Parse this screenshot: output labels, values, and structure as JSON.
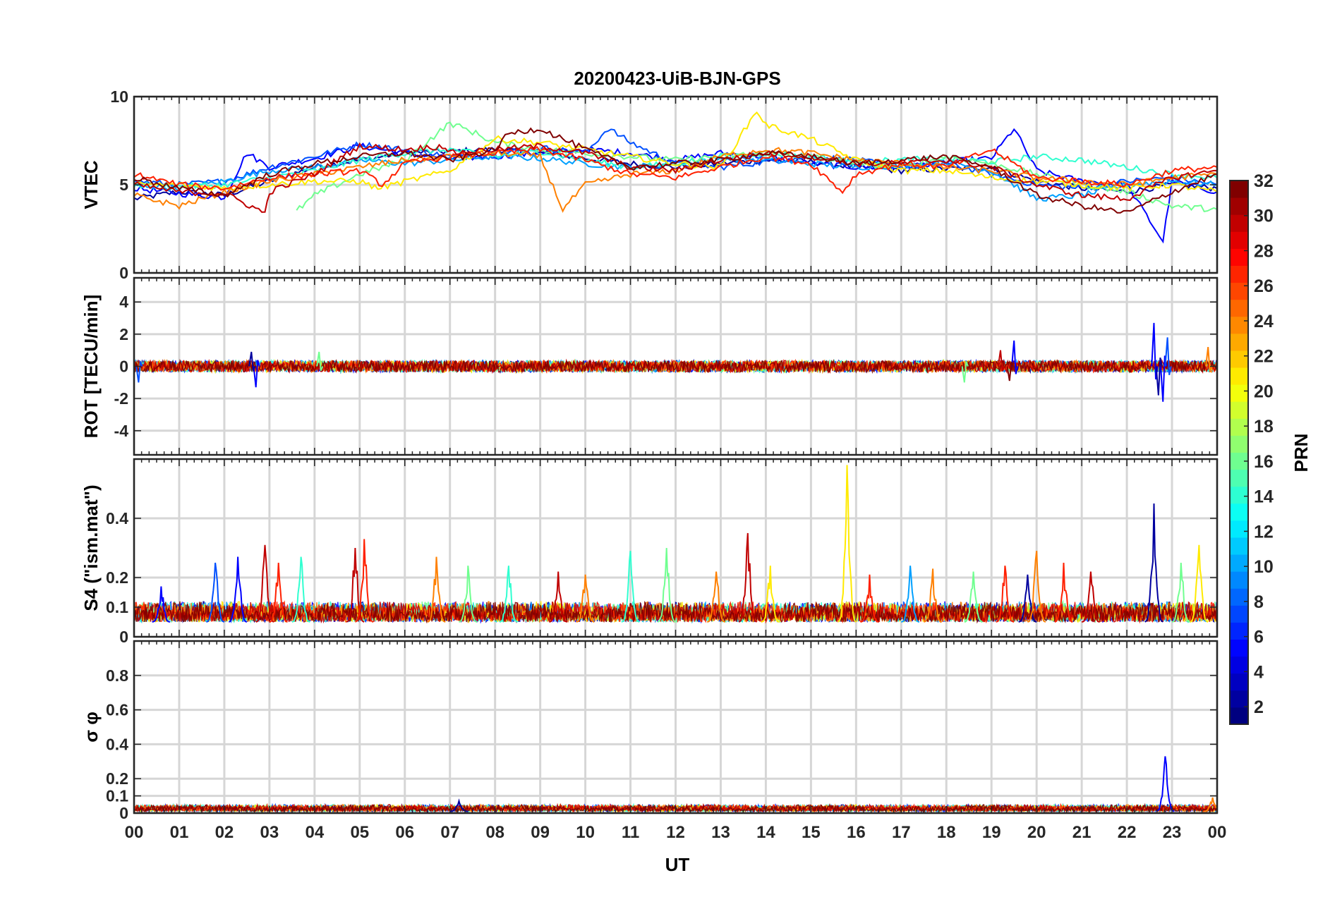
{
  "chart_data": {
    "type": "line",
    "title": "20200423-UiB-BJN-GPS",
    "xlabel": "UT",
    "x_ticks": [
      "00",
      "01",
      "02",
      "03",
      "04",
      "05",
      "06",
      "07",
      "08",
      "09",
      "10",
      "11",
      "12",
      "13",
      "14",
      "15",
      "16",
      "17",
      "18",
      "19",
      "20",
      "21",
      "22",
      "23",
      "00"
    ],
    "xlim": [
      0,
      24
    ],
    "grid": true,
    "panels": [
      {
        "id": "vtec",
        "ylabel": "VTEC",
        "ylim": [
          0,
          10
        ],
        "yticks": [
          0,
          5,
          10
        ],
        "ytick_labels": [
          "0",
          "5",
          "10"
        ],
        "series": [
          {
            "prn": 2,
            "color": "#00009f",
            "x": [
              0,
              1,
              2,
              3,
              4,
              5,
              6,
              7,
              8,
              9,
              10,
              11,
              12,
              13,
              14,
              15,
              16,
              17,
              18,
              19,
              20,
              21,
              22,
              23,
              24
            ],
            "y": [
              4.2,
              4.6,
              4.4,
              5.2,
              6.0,
              6.4,
              6.8,
              6.9,
              7.0,
              6.8,
              6.5,
              6.2,
              6.0,
              6.2,
              6.4,
              6.3,
              6.0,
              5.8,
              5.9,
              6.0,
              5.2,
              4.8,
              4.6,
              5.0,
              4.8
            ]
          },
          {
            "prn": 4,
            "color": "#0000ff",
            "x": [
              0,
              1,
              2,
              2.5,
              3,
              4,
              5,
              6,
              7,
              8,
              9,
              10,
              11,
              12,
              13,
              14,
              15,
              16,
              17,
              18,
              19,
              19.5,
              20,
              21,
              22,
              22.8,
              23,
              24
            ],
            "y": [
              4.8,
              4.5,
              4.3,
              6.8,
              6.0,
              6.5,
              7.2,
              6.8,
              6.5,
              6.6,
              6.8,
              7.0,
              6.8,
              6.4,
              6.8,
              6.6,
              6.2,
              6.0,
              6.0,
              6.3,
              6.5,
              8.2,
              5.8,
              5.2,
              5.0,
              1.8,
              5.2,
              4.6
            ]
          },
          {
            "prn": 7,
            "color": "#0050ff",
            "x": [
              0,
              1,
              2,
              3,
              4,
              5,
              6,
              7,
              8,
              9,
              10,
              10.5,
              11,
              12,
              13,
              14,
              15,
              16,
              17,
              18,
              19,
              20,
              21,
              22,
              23,
              24
            ],
            "y": [
              5.2,
              5.0,
              5.2,
              6.0,
              6.6,
              7.3,
              7.0,
              6.6,
              6.7,
              7.1,
              6.8,
              8.2,
              7.4,
              6.2,
              6.0,
              6.3,
              6.6,
              6.4,
              6.0,
              6.2,
              5.6,
              5.0,
              4.8,
              5.2,
              5.4,
              5.0
            ]
          },
          {
            "prn": 10,
            "color": "#00a0ff",
            "x": [
              0,
              1,
              2,
              3,
              4,
              5,
              6,
              7,
              8,
              9,
              10,
              11,
              12,
              13,
              14,
              15,
              16,
              17,
              18,
              19,
              20,
              21,
              22,
              23,
              24
            ],
            "y": [
              5.0,
              4.8,
              5.2,
              5.8,
              6.0,
              6.4,
              6.2,
              6.4,
              6.6,
              6.5,
              6.2,
              6.0,
              6.2,
              6.5,
              6.4,
              6.2,
              6.0,
              6.1,
              6.3,
              5.8,
              4.2,
              4.4,
              5.0,
              5.2,
              5.0
            ]
          },
          {
            "prn": 14,
            "color": "#30ffd0",
            "x": [
              0,
              1,
              2,
              3,
              4,
              5,
              6,
              7,
              8,
              9,
              10,
              11,
              12,
              13,
              14,
              15,
              16,
              17,
              18,
              19,
              20,
              21,
              22,
              23,
              24
            ],
            "y": [
              5.0,
              4.9,
              5.0,
              5.4,
              5.8,
              6.4,
              6.8,
              7.0,
              6.6,
              6.9,
              6.4,
              6.0,
              6.2,
              6.6,
              6.8,
              6.6,
              6.3,
              6.4,
              6.5,
              6.3,
              6.6,
              6.4,
              6.0,
              5.6,
              5.4
            ]
          },
          {
            "prn": 16,
            "color": "#70ff90",
            "x": [
              3.6,
              4,
              5,
              6,
              7,
              7.5,
              8,
              9,
              10,
              11,
              12,
              13,
              14,
              15,
              16,
              17,
              18,
              19,
              20,
              21,
              22,
              23,
              24
            ],
            "y": [
              3.5,
              4.4,
              5.6,
              6.4,
              8.5,
              8.0,
              7.4,
              7.0,
              6.8,
              6.6,
              6.4,
              6.6,
              6.8,
              6.6,
              6.2,
              6.0,
              6.6,
              6.2,
              5.6,
              5.0,
              4.6,
              3.8,
              3.6
            ]
          },
          {
            "prn": 20,
            "color": "#ffea00",
            "x": [
              0,
              1,
              2,
              3,
              4,
              5,
              5.4,
              7,
              8,
              9,
              10,
              11,
              12,
              13,
              13.8,
              14,
              15,
              16,
              17,
              18,
              19,
              20,
              21,
              22,
              23,
              24
            ],
            "y": [
              5.0,
              5.0,
              4.8,
              5.0,
              5.2,
              5.2,
              4.8,
              5.8,
              7.6,
              7.4,
              7.0,
              6.6,
              6.2,
              6.0,
              9.2,
              8.4,
              7.6,
              6.4,
              5.8,
              5.8,
              5.4,
              5.2,
              5.0,
              4.8,
              5.0,
              4.6
            ]
          },
          {
            "prn": 24,
            "color": "#ff8000",
            "x": [
              0,
              1,
              2,
              3,
              4,
              5,
              6,
              7,
              8,
              9,
              9.5,
              10,
              11,
              12,
              13,
              14,
              15,
              16,
              17,
              18,
              19,
              20,
              21,
              22,
              23,
              24
            ],
            "y": [
              4.4,
              3.8,
              4.6,
              5.2,
              5.6,
              6.0,
              6.4,
              6.6,
              6.8,
              6.6,
              3.6,
              5.0,
              5.6,
              5.8,
              6.6,
              7.0,
              6.8,
              6.4,
              6.2,
              6.0,
              5.8,
              5.4,
              5.2,
              5.0,
              5.4,
              5.6
            ]
          },
          {
            "prn": 27,
            "color": "#ff2000",
            "x": [
              0,
              1,
              2,
              3,
              4,
              5,
              5.5,
              6,
              7,
              8,
              9,
              10,
              11,
              12,
              13,
              14,
              15,
              15.7,
              16,
              17,
              18,
              19,
              20,
              21,
              22,
              23,
              24
            ],
            "y": [
              5.6,
              5.0,
              4.8,
              5.4,
              5.6,
              5.8,
              5.0,
              6.2,
              6.6,
              6.8,
              7.0,
              6.4,
              5.6,
              5.4,
              6.0,
              6.6,
              6.2,
              4.6,
              5.6,
              6.2,
              6.0,
              7.0,
              5.4,
              5.2,
              5.0,
              5.8,
              6.0
            ]
          },
          {
            "prn": 30,
            "color": "#c00000",
            "x": [
              0,
              1,
              2,
              2.9,
              3,
              4,
              5,
              6,
              6.9,
              7,
              8,
              9,
              10,
              11,
              12,
              13,
              14,
              15,
              16,
              17,
              18,
              19,
              20,
              21,
              22,
              23,
              24
            ],
            "y": [
              5.0,
              4.6,
              4.5,
              3.4,
              4.6,
              5.6,
              7.2,
              7.0,
              7.2,
              6.8,
              7.0,
              7.2,
              6.8,
              6.0,
              5.8,
              6.4,
              6.8,
              6.6,
              6.2,
              6.2,
              6.4,
              6.0,
              5.0,
              4.4,
              4.2,
              5.4,
              5.8
            ]
          },
          {
            "prn": 32,
            "color": "#800000",
            "x": [
              0,
              1,
              2,
              3,
              4,
              5,
              6,
              7,
              8,
              8.3,
              9,
              10,
              11,
              12,
              13,
              14,
              15,
              16,
              17,
              18,
              19,
              20,
              21,
              22,
              23,
              24
            ],
            "y": [
              5.4,
              4.8,
              4.4,
              5.6,
              6.2,
              6.6,
              6.8,
              6.4,
              7.0,
              7.9,
              8.2,
              7.0,
              6.0,
              6.2,
              6.4,
              6.8,
              6.6,
              6.2,
              6.4,
              6.6,
              6.0,
              4.4,
              3.8,
              3.4,
              4.6,
              5.6
            ]
          }
        ]
      },
      {
        "id": "rot",
        "ylabel": "ROT [TECU/min]",
        "ylim": [
          -5.5,
          5.5
        ],
        "yticks": [
          -4,
          -2,
          0,
          2,
          4
        ],
        "ytick_labels": [
          "-4",
          "-2",
          "0",
          "2",
          "4"
        ],
        "noise_band": [
          -0.3,
          0.3
        ],
        "spikes": [
          {
            "x": 0.1,
            "y": -1.0,
            "color": "#0050ff"
          },
          {
            "x": 2.7,
            "y": -1.3,
            "color": "#0000ff"
          },
          {
            "x": 2.6,
            "y": 0.9,
            "color": "#00009f"
          },
          {
            "x": 4.1,
            "y": 0.9,
            "color": "#70ff90"
          },
          {
            "x": 18.4,
            "y": -1.0,
            "color": "#70ff90"
          },
          {
            "x": 19.2,
            "y": 1.0,
            "color": "#c00000"
          },
          {
            "x": 19.5,
            "y": 1.6,
            "color": "#0000ff"
          },
          {
            "x": 19.4,
            "y": -0.9,
            "color": "#800000"
          },
          {
            "x": 22.6,
            "y": 2.7,
            "color": "#0000ff"
          },
          {
            "x": 22.8,
            "y": -2.2,
            "color": "#0000ff"
          },
          {
            "x": 22.9,
            "y": 1.8,
            "color": "#0050ff"
          },
          {
            "x": 22.7,
            "y": -1.8,
            "color": "#00009f"
          },
          {
            "x": 23.8,
            "y": 1.2,
            "color": "#ff8000"
          }
        ]
      },
      {
        "id": "s4",
        "ylabel": "S4 (\"ism.mat\")",
        "ylim": [
          0,
          0.6
        ],
        "yticks": [
          0,
          0.1,
          0.2,
          0.4
        ],
        "ytick_labels": [
          "0",
          "0.1",
          "0.2",
          "0.4"
        ],
        "baseline_range": [
          0.05,
          0.12
        ],
        "peaks": [
          {
            "x": 0.6,
            "y": 0.17,
            "color": "#0000ff"
          },
          {
            "x": 1.8,
            "y": 0.25,
            "color": "#0050ff"
          },
          {
            "x": 2.3,
            "y": 0.27,
            "color": "#0000ff"
          },
          {
            "x": 2.9,
            "y": 0.31,
            "color": "#c00000"
          },
          {
            "x": 3.2,
            "y": 0.25,
            "color": "#ff2000"
          },
          {
            "x": 3.7,
            "y": 0.27,
            "color": "#30ffd0"
          },
          {
            "x": 4.9,
            "y": 0.3,
            "color": "#c00000"
          },
          {
            "x": 5.1,
            "y": 0.33,
            "color": "#ff2000"
          },
          {
            "x": 6.7,
            "y": 0.27,
            "color": "#ff8000"
          },
          {
            "x": 7.4,
            "y": 0.24,
            "color": "#70ff90"
          },
          {
            "x": 8.3,
            "y": 0.24,
            "color": "#30ffd0"
          },
          {
            "x": 9.4,
            "y": 0.22,
            "color": "#c00000"
          },
          {
            "x": 10.0,
            "y": 0.21,
            "color": "#ff8000"
          },
          {
            "x": 11.0,
            "y": 0.29,
            "color": "#30ffd0"
          },
          {
            "x": 11.8,
            "y": 0.3,
            "color": "#70ff90"
          },
          {
            "x": 12.9,
            "y": 0.22,
            "color": "#ff8000"
          },
          {
            "x": 13.6,
            "y": 0.35,
            "color": "#c00000"
          },
          {
            "x": 14.1,
            "y": 0.24,
            "color": "#ffea00"
          },
          {
            "x": 15.8,
            "y": 0.58,
            "color": "#ffea00"
          },
          {
            "x": 16.3,
            "y": 0.21,
            "color": "#ff2000"
          },
          {
            "x": 17.2,
            "y": 0.24,
            "color": "#00a0ff"
          },
          {
            "x": 17.7,
            "y": 0.23,
            "color": "#ff8000"
          },
          {
            "x": 18.6,
            "y": 0.22,
            "color": "#70ff90"
          },
          {
            "x": 19.3,
            "y": 0.24,
            "color": "#ff2000"
          },
          {
            "x": 19.8,
            "y": 0.21,
            "color": "#00009f"
          },
          {
            "x": 20.0,
            "y": 0.29,
            "color": "#ff8000"
          },
          {
            "x": 20.6,
            "y": 0.25,
            "color": "#ff2000"
          },
          {
            "x": 21.2,
            "y": 0.22,
            "color": "#c00000"
          },
          {
            "x": 22.6,
            "y": 0.45,
            "color": "#00009f"
          },
          {
            "x": 23.2,
            "y": 0.25,
            "color": "#70ff90"
          },
          {
            "x": 23.6,
            "y": 0.31,
            "color": "#ffea00"
          }
        ]
      },
      {
        "id": "sigma_phi",
        "ylabel": "σ φ",
        "ylim": [
          0,
          1
        ],
        "yticks": [
          0,
          0.1,
          0.2,
          0.4,
          0.6,
          0.8
        ],
        "ytick_labels": [
          "0",
          "0.1",
          "0.2",
          "0.4",
          "0.6",
          "0.8"
        ],
        "baseline_range": [
          0.01,
          0.05
        ],
        "peaks": [
          {
            "x": 22.85,
            "y": 0.33,
            "color": "#0000ff"
          },
          {
            "x": 7.2,
            "y": 0.07,
            "color": "#00009f"
          },
          {
            "x": 23.9,
            "y": 0.09,
            "color": "#ff8000"
          }
        ]
      }
    ],
    "colorbar": {
      "label": "PRN",
      "range": [
        1,
        32
      ],
      "ticks": [
        "2",
        "4",
        "6",
        "8",
        "10",
        "12",
        "14",
        "16",
        "18",
        "20",
        "22",
        "24",
        "26",
        "28",
        "30",
        "32"
      ],
      "colormap": "jet"
    }
  }
}
